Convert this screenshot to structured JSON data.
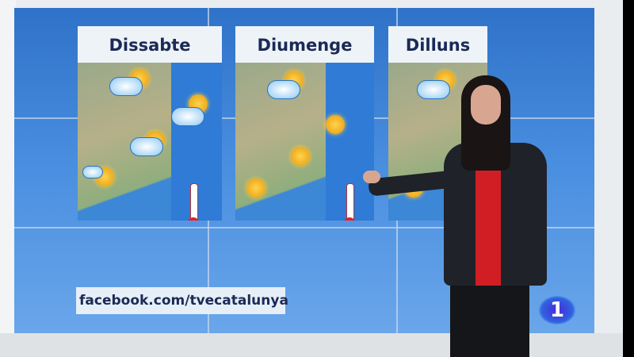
{
  "forecast": {
    "days": [
      {
        "label": "Dissabte"
      },
      {
        "label": "Diumenge"
      },
      {
        "label": "Dilluns"
      }
    ],
    "icons": [
      "sun-icon",
      "cloud-icon",
      "thermometer-icon",
      "wind-arrow-icon"
    ]
  },
  "social": {
    "facebook": "facebook.com/tvecatalunya"
  },
  "channel_logo": {
    "text": "1"
  },
  "colors": {
    "screen_blue": "#3a80d6",
    "title_navy": "#1b2a55",
    "logo_blue": "#2f62e0"
  }
}
